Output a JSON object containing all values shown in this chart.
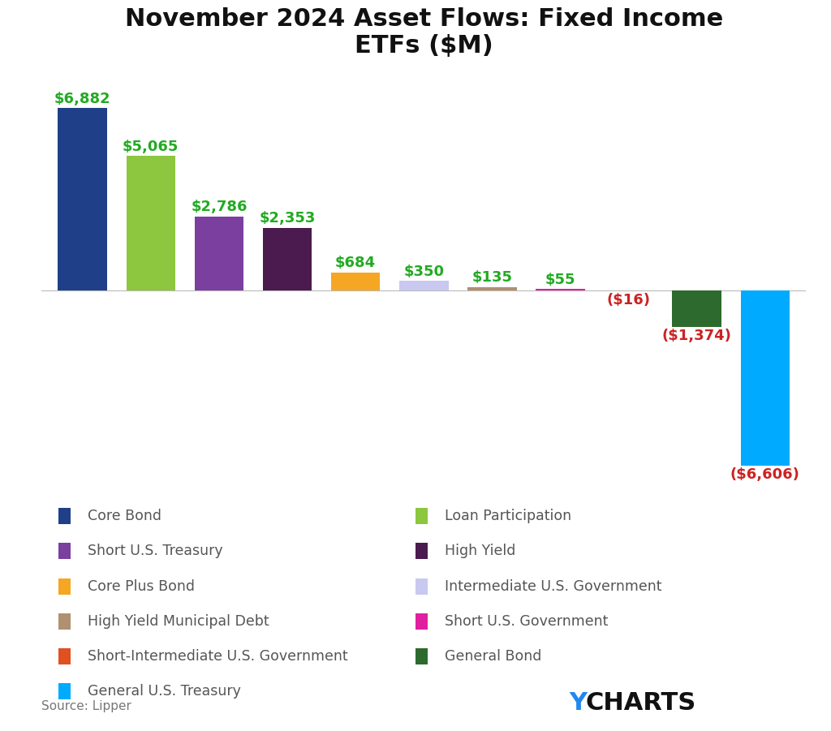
{
  "title": "November 2024 Asset Flows: Fixed Income\nETFs ($M)",
  "categories": [
    "Core Bond",
    "Loan Participation",
    "Short U.S. Treasury",
    "High Yield",
    "Core Plus Bond",
    "Intermediate U.S. Government",
    "High Yield Municipal Debt",
    "Short U.S. Government",
    "Short-Intermediate U.S. Government",
    "General Bond",
    "General U.S. Treasury"
  ],
  "values": [
    6882,
    5065,
    2786,
    2353,
    684,
    350,
    135,
    55,
    -16,
    -1374,
    -6606
  ],
  "colors": [
    "#1F4088",
    "#8DC63F",
    "#7B3FA0",
    "#4B1A4E",
    "#F5A623",
    "#C8C8F0",
    "#B09070",
    "#E020A0",
    "#E05020",
    "#2D6A2D",
    "#00AAFF"
  ],
  "label_color_positive": "#22AA22",
  "label_color_negative": "#CC2222",
  "source_text": "Source: Lipper",
  "ycharts_y_color": "#2288EE",
  "ycharts_charts_color": "#111111",
  "background_color": "#FFFFFF",
  "title_fontsize": 22,
  "label_fontsize": 13,
  "legend_fontsize": 12.5,
  "legend_pairs": [
    [
      "Core Bond",
      "Loan Participation"
    ],
    [
      "Short U.S. Treasury",
      "High Yield"
    ],
    [
      "Core Plus Bond",
      "Intermediate U.S. Government"
    ],
    [
      "High Yield Municipal Debt",
      "Short U.S. Government"
    ],
    [
      "Short-Intermediate U.S. Government",
      "General Bond"
    ],
    [
      "General U.S. Treasury",
      null
    ]
  ]
}
